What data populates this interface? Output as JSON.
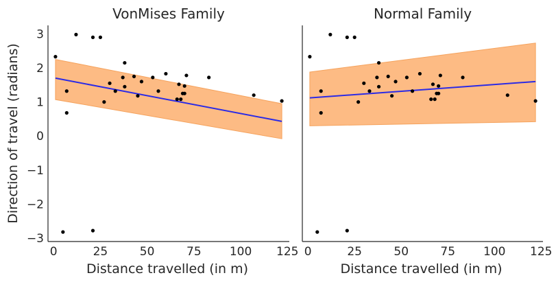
{
  "chart_data": [
    {
      "type": "scatter",
      "title": "VonMises Family",
      "xlabel": "Distance travelled (in m)",
      "ylabel": "Direction of travel (radians)",
      "xlim": [
        -3,
        126
      ],
      "ylim": [
        -3.1,
        3.25
      ],
      "xticks": [
        "0",
        "25",
        "50",
        "75",
        "100",
        "125"
      ],
      "yticks": [
        "3",
        "2",
        "1",
        "0",
        "−1",
        "−2",
        "−3"
      ],
      "grid": false,
      "points": [
        [
          1,
          2.33
        ],
        [
          5,
          -2.82
        ],
        [
          7,
          1.32
        ],
        [
          7,
          0.68
        ],
        [
          12,
          2.98
        ],
        [
          21,
          2.9
        ],
        [
          21,
          -2.78
        ],
        [
          25,
          2.9
        ],
        [
          27,
          1.0
        ],
        [
          30,
          1.55
        ],
        [
          33,
          1.32
        ],
        [
          37,
          1.72
        ],
        [
          38,
          1.45
        ],
        [
          38,
          2.15
        ],
        [
          43,
          1.75
        ],
        [
          45,
          1.18
        ],
        [
          47,
          1.6
        ],
        [
          53,
          1.72
        ],
        [
          56,
          1.32
        ],
        [
          60,
          1.83
        ],
        [
          66,
          1.08
        ],
        [
          67,
          1.52
        ],
        [
          68,
          1.08
        ],
        [
          69,
          1.25
        ],
        [
          70,
          1.47
        ],
        [
          70,
          1.25
        ],
        [
          71,
          1.78
        ],
        [
          83,
          1.72
        ],
        [
          107,
          1.2
        ],
        [
          122,
          1.03
        ]
      ],
      "fit_line": {
        "x": [
          1,
          122
        ],
        "y": [
          1.7,
          0.43
        ],
        "color": "#2a2ae6"
      },
      "band": {
        "x": [
          1,
          122
        ],
        "upper": [
          2.25,
          0.95
        ],
        "lower": [
          1.07,
          -0.08
        ],
        "color": "#fdbb84"
      }
    },
    {
      "type": "scatter",
      "title": "Normal Family",
      "xlabel": "Distance travelled (in m)",
      "ylabel": "",
      "xlim": [
        -3,
        126
      ],
      "ylim": [
        -3.1,
        3.25
      ],
      "xticks": [
        "0",
        "25",
        "50",
        "75",
        "100",
        "125"
      ],
      "yticks": [],
      "grid": false,
      "points": [
        [
          1,
          2.33
        ],
        [
          5,
          -2.82
        ],
        [
          7,
          1.32
        ],
        [
          7,
          0.68
        ],
        [
          12,
          2.98
        ],
        [
          21,
          2.9
        ],
        [
          21,
          -2.78
        ],
        [
          25,
          2.9
        ],
        [
          27,
          1.0
        ],
        [
          30,
          1.55
        ],
        [
          33,
          1.32
        ],
        [
          37,
          1.72
        ],
        [
          38,
          1.45
        ],
        [
          38,
          2.15
        ],
        [
          43,
          1.75
        ],
        [
          45,
          1.18
        ],
        [
          47,
          1.6
        ],
        [
          53,
          1.72
        ],
        [
          56,
          1.32
        ],
        [
          60,
          1.83
        ],
        [
          66,
          1.08
        ],
        [
          67,
          1.52
        ],
        [
          68,
          1.08
        ],
        [
          69,
          1.25
        ],
        [
          70,
          1.47
        ],
        [
          70,
          1.25
        ],
        [
          71,
          1.78
        ],
        [
          83,
          1.72
        ],
        [
          107,
          1.2
        ],
        [
          122,
          1.03
        ]
      ],
      "fit_line": {
        "x": [
          1,
          122
        ],
        "y": [
          1.12,
          1.6
        ],
        "color": "#2a2ae6"
      },
      "band": {
        "x": [
          1,
          122
        ],
        "upper": [
          1.88,
          2.73
        ],
        "lower": [
          0.3,
          0.42
        ],
        "color": "#fdbb84"
      }
    }
  ]
}
